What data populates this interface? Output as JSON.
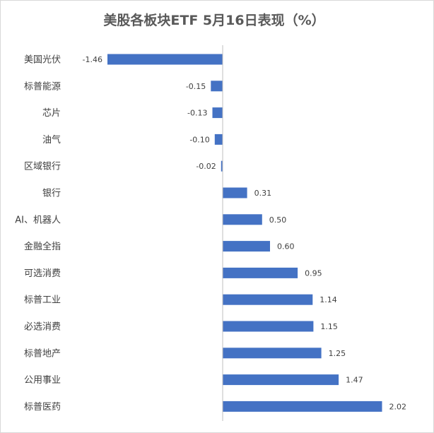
{
  "chart_data": {
    "type": "bar",
    "orientation": "horizontal",
    "title": "美股各板块ETF 5月16日表现（%）",
    "xlabel": "",
    "ylabel": "",
    "grid": false,
    "legend": "none",
    "bar_color": "#4472c4",
    "categories": [
      "美国光伏",
      "标普能源",
      "芯片",
      "油气",
      "区域银行",
      "银行",
      "AI、机器人",
      "金融全指",
      "可选消费",
      "标普工业",
      "必选消费",
      "标普地产",
      "公用事业",
      "标普医药"
    ],
    "values": [
      -1.46,
      -0.15,
      -0.13,
      -0.1,
      -0.02,
      0.31,
      0.5,
      0.6,
      0.95,
      1.14,
      1.15,
      1.25,
      1.47,
      2.02
    ],
    "value_labels": [
      "-1.46",
      "-0.15",
      "-0.13",
      "-0.10",
      "-0.02",
      "0.31",
      "0.50",
      "0.60",
      "0.95",
      "1.14",
      "1.15",
      "1.25",
      "1.47",
      "2.02"
    ],
    "xlim": [
      -1.46,
      2.02
    ]
  }
}
